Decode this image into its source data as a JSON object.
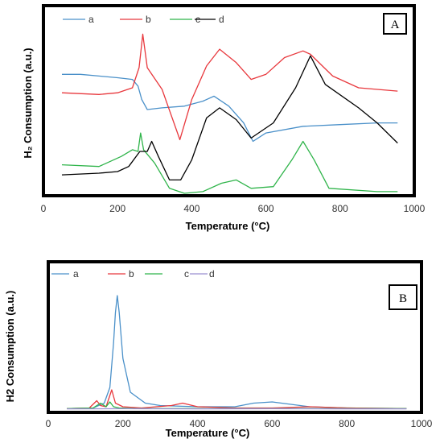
{
  "chart_data": [
    {
      "type": "line",
      "badge": "A",
      "xlabel": "Temperature (°C)",
      "ylabel": "H₂ Consumption (a.u.)",
      "xlim": [
        0,
        1000
      ],
      "ylim": [
        0,
        100
      ],
      "x_ticks": [
        0,
        200,
        400,
        600,
        800,
        1000
      ],
      "legend_position": "top-left",
      "grid": false,
      "series": [
        {
          "name": "a",
          "color": "#4a90c9",
          "x": [
            50,
            100,
            150,
            200,
            240,
            255,
            265,
            280,
            320,
            380,
            430,
            460,
            500,
            540,
            565,
            600,
            700,
            800,
            900,
            955
          ],
          "y": [
            71,
            71,
            70,
            69,
            68,
            64,
            56,
            50,
            51,
            52,
            55,
            58,
            52,
            42,
            31,
            36,
            40,
            41,
            42,
            42
          ]
        },
        {
          "name": "b",
          "color": "#e8383d",
          "x": [
            50,
            150,
            200,
            240,
            258,
            268,
            280,
            320,
            368,
            400,
            440,
            475,
            520,
            560,
            600,
            650,
            700,
            720,
            780,
            850,
            955
          ],
          "y": [
            60,
            59,
            60,
            63,
            75,
            95,
            75,
            62,
            32,
            56,
            76,
            86,
            78,
            68,
            71,
            81,
            85,
            83,
            70,
            63,
            61
          ]
        },
        {
          "name": "c",
          "color": "#2fb44a",
          "x": [
            50,
            150,
            210,
            240,
            255,
            262,
            270,
            300,
            340,
            380,
            430,
            480,
            520,
            560,
            620,
            670,
            700,
            730,
            770,
            900,
            955
          ],
          "y": [
            17,
            16,
            22,
            26,
            25,
            36,
            26,
            18,
            3,
            0,
            1,
            6,
            8,
            3,
            4,
            20,
            31,
            20,
            3,
            1,
            1
          ]
        },
        {
          "name": "d",
          "color": "#000000",
          "x": [
            50,
            150,
            200,
            230,
            260,
            280,
            292,
            310,
            340,
            370,
            400,
            440,
            475,
            520,
            560,
            620,
            680,
            720,
            760,
            850,
            900,
            955
          ],
          "y": [
            11,
            12,
            13,
            16,
            25,
            25,
            31,
            22,
            8,
            8,
            20,
            45,
            51,
            44,
            33,
            42,
            63,
            82,
            65,
            51,
            42,
            30
          ]
        }
      ]
    },
    {
      "type": "line",
      "badge": "B",
      "xlabel": "Temperature (°C)",
      "ylabel": "H2 Consumption (a.u.)",
      "xlim": [
        0,
        1000
      ],
      "ylim": [
        0,
        100
      ],
      "x_ticks": [
        0,
        200,
        400,
        600,
        800,
        1000
      ],
      "legend_position": "top-left",
      "grid": false,
      "series": [
        {
          "name": "a",
          "color": "#4a90c9",
          "x": [
            50,
            120,
            150,
            165,
            175,
            180,
            185,
            190,
            200,
            220,
            260,
            300,
            400,
            500,
            550,
            600,
            650,
            700,
            800,
            960
          ],
          "y": [
            0.5,
            1,
            5,
            18,
            55,
            80,
            94,
            80,
            42,
            14,
            5,
            3,
            2,
            2,
            5,
            6,
            4,
            2,
            1,
            0.5
          ]
        },
        {
          "name": "b",
          "color": "#e8383d",
          "x": [
            50,
            110,
            130,
            140,
            155,
            170,
            180,
            200,
            250,
            330,
            360,
            400,
            500,
            600,
            700,
            800,
            960
          ],
          "y": [
            0.5,
            1,
            7,
            3,
            2,
            16,
            5,
            2,
            1,
            3,
            5,
            2,
            1,
            1,
            2,
            1,
            0.5
          ]
        },
        {
          "name": "c",
          "color": "#2fb44a",
          "x": [
            50,
            120,
            140,
            155,
            165,
            175,
            190,
            240,
            400,
            600,
            800,
            960
          ],
          "y": [
            0.5,
            1,
            5,
            2,
            6,
            2,
            1,
            0.5,
            0.5,
            0.5,
            0.5,
            0.5
          ]
        },
        {
          "name": "d",
          "color": "#9b8fd0",
          "x": [
            50,
            200,
            400,
            600,
            800,
            960
          ],
          "y": [
            0.3,
            0.4,
            0.3,
            0.4,
            0.3,
            0.3
          ]
        }
      ]
    }
  ]
}
